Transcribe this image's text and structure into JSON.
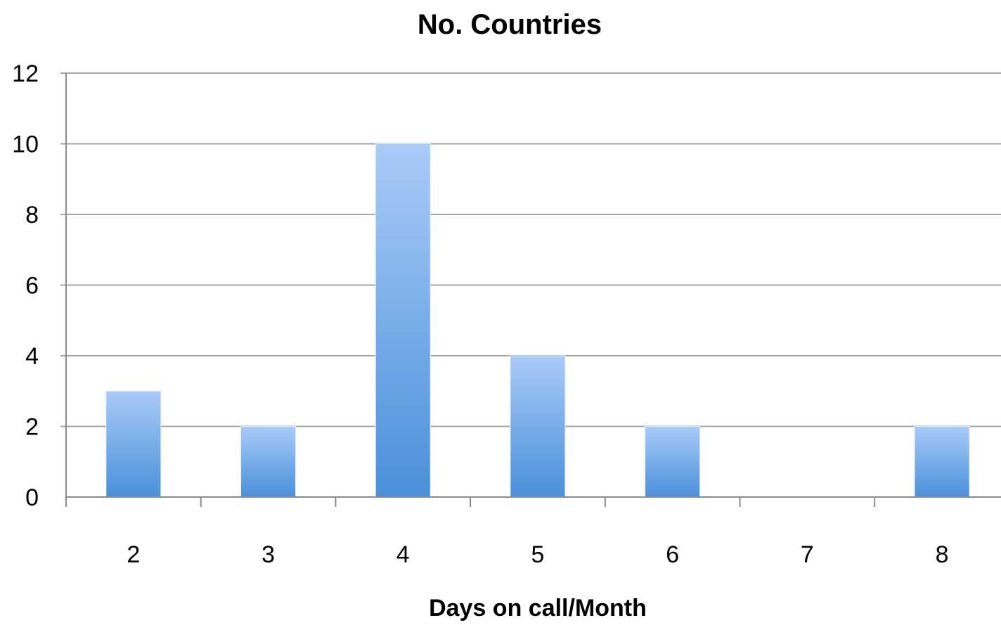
{
  "chart_data": {
    "type": "bar",
    "title": "No. Countries",
    "xlabel": "Days on call/Month",
    "ylabel": "",
    "categories": [
      "2",
      "3",
      "4",
      "5",
      "6",
      "7",
      "8"
    ],
    "values": [
      3,
      2,
      10,
      4,
      2,
      0,
      2
    ],
    "yticks": [
      "0",
      "2",
      "4",
      "6",
      "8",
      "10",
      "12"
    ],
    "ylim": [
      0,
      12
    ],
    "grid": true,
    "legend": "none",
    "colors": {
      "bar_top": "#a9cbf8",
      "bar_bottom": "#4a90d9",
      "grid": "#a6a6a6",
      "axis": "#8c8c8c"
    }
  }
}
